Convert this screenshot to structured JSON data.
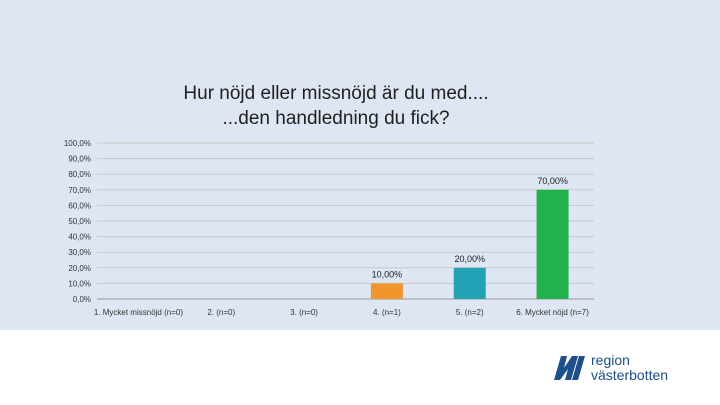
{
  "chart_data": {
    "type": "bar",
    "title_lines": [
      "Hur nöjd eller missnöjd är du med....",
      "...den handledning du fick?"
    ],
    "categories": [
      "1. Mycket missnöjd (n=0)",
      "2. (n=0)",
      "3. (n=0)",
      "4. (n=1)",
      "5. (n=2)",
      "6. Mycket nöjd (n=7)"
    ],
    "values": [
      0,
      0,
      0,
      10,
      20,
      70
    ],
    "data_labels": [
      "",
      "",
      "",
      "10,00%",
      "20,00%",
      "70,00%"
    ],
    "bar_colors": [
      "#7f7f7f",
      "#7f7f7f",
      "#7f7f7f",
      "#f0962d",
      "#22a3b3",
      "#21b24d"
    ],
    "y_ticks": [
      "0,0%",
      "10,0%",
      "20,0%",
      "30,0%",
      "40,0%",
      "50,0%",
      "60,0%",
      "70,0%",
      "80,0%",
      "90,0%",
      "100,0%"
    ],
    "ylim": [
      0,
      100
    ],
    "grid": true,
    "legend": "none"
  },
  "logo": {
    "line1": "region",
    "line2": "västerbotten"
  }
}
